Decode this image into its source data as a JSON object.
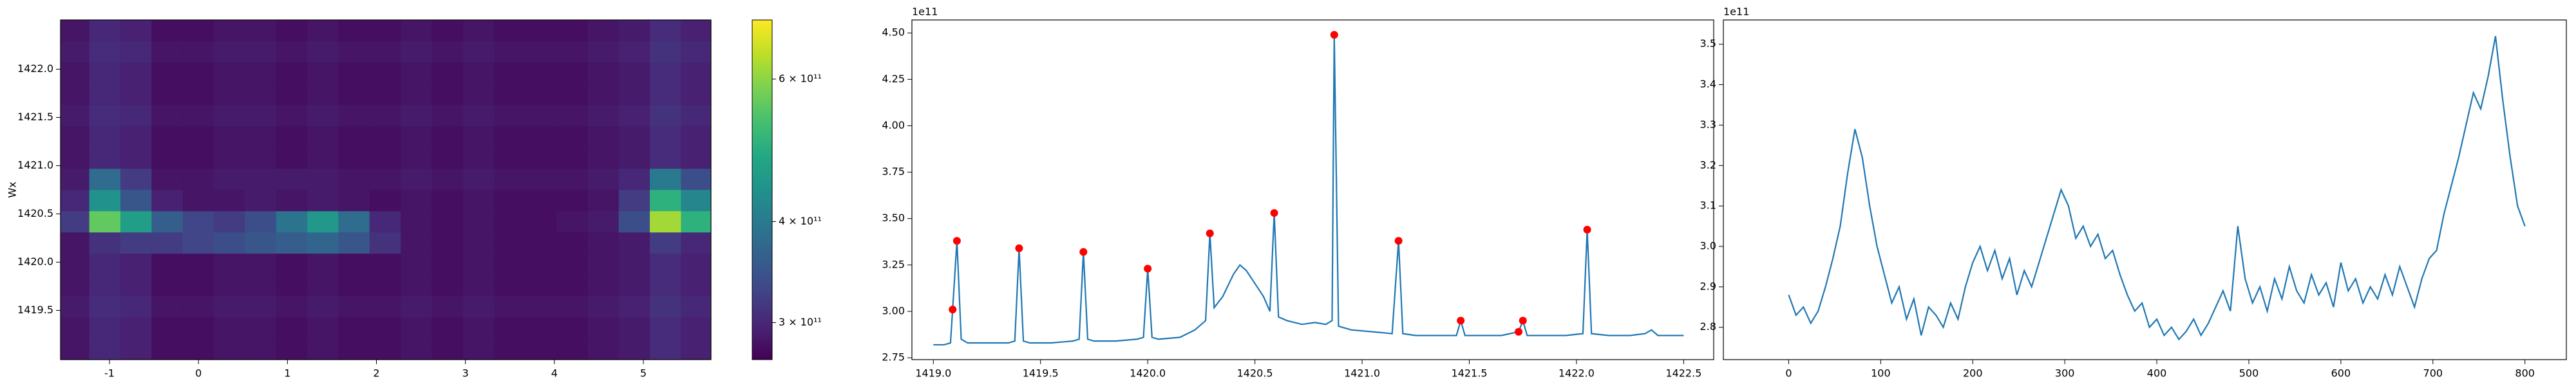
{
  "chart_data": [
    {
      "type": "heatmap",
      "ylabel": "Wx",
      "cmap": "viridis",
      "xlim": [
        -1.55,
        5.76
      ],
      "ylim": [
        1418.99,
        1422.51
      ],
      "xticks": [
        -1,
        0,
        1,
        2,
        3,
        4,
        5
      ],
      "yticks": [
        1419.5,
        {
          "value": 1420,
          "label": "1420.0"
        },
        1420.5,
        {
          "value": 1421,
          "label": "1421.0"
        },
        1421.5,
        {
          "value": 1422,
          "label": "1422.0"
        }
      ],
      "x": [
        -1.4,
        -1.05,
        -0.7,
        -0.35,
        0,
        0.35,
        0.7,
        1.05,
        1.4,
        1.75,
        2.1,
        2.45,
        2.8,
        3.15,
        3.5,
        3.85,
        4.2,
        4.55,
        4.9,
        5.25,
        5.6
      ],
      "y": [
        1419.1,
        1419.32,
        1419.54,
        1419.76,
        1419.98,
        1420.2,
        1420.42,
        1420.64,
        1420.86,
        1421.08,
        1421.3,
        1421.52,
        1421.74,
        1421.96,
        1422.18,
        1422.4
      ],
      "z": [
        [
          285000000000.0,
          300000000000.0,
          295000000000.0,
          280000000000.0,
          280000000000.0,
          285000000000.0,
          285000000000.0,
          280000000000.0,
          285000000000.0,
          280000000000.0,
          280000000000.0,
          285000000000.0,
          280000000000.0,
          285000000000.0,
          280000000000.0,
          280000000000.0,
          280000000000.0,
          285000000000.0,
          290000000000.0,
          305000000000.0,
          295000000000.0
        ],
        [
          285000000000.0,
          300000000000.0,
          295000000000.0,
          280000000000.0,
          280000000000.0,
          285000000000.0,
          285000000000.0,
          280000000000.0,
          285000000000.0,
          280000000000.0,
          280000000000.0,
          285000000000.0,
          280000000000.0,
          285000000000.0,
          280000000000.0,
          280000000000.0,
          280000000000.0,
          285000000000.0,
          290000000000.0,
          305000000000.0,
          295000000000.0
        ],
        [
          290000000000.0,
          305000000000.0,
          300000000000.0,
          285000000000.0,
          285000000000.0,
          290000000000.0,
          290000000000.0,
          285000000000.0,
          290000000000.0,
          285000000000.0,
          285000000000.0,
          290000000000.0,
          285000000000.0,
          290000000000.0,
          285000000000.0,
          285000000000.0,
          285000000000.0,
          290000000000.0,
          295000000000.0,
          310000000000.0,
          300000000000.0
        ],
        [
          285000000000.0,
          300000000000.0,
          295000000000.0,
          280000000000.0,
          280000000000.0,
          285000000000.0,
          285000000000.0,
          280000000000.0,
          285000000000.0,
          280000000000.0,
          280000000000.0,
          285000000000.0,
          280000000000.0,
          285000000000.0,
          280000000000.0,
          280000000000.0,
          280000000000.0,
          285000000000.0,
          290000000000.0,
          305000000000.0,
          295000000000.0
        ],
        [
          285000000000.0,
          300000000000.0,
          295000000000.0,
          280000000000.0,
          280000000000.0,
          285000000000.0,
          285000000000.0,
          280000000000.0,
          285000000000.0,
          280000000000.0,
          280000000000.0,
          285000000000.0,
          280000000000.0,
          285000000000.0,
          280000000000.0,
          280000000000.0,
          280000000000.0,
          285000000000.0,
          290000000000.0,
          305000000000.0,
          295000000000.0
        ],
        [
          285000000000.0,
          310000000000.0,
          320000000000.0,
          320000000000.0,
          330000000000.0,
          340000000000.0,
          350000000000.0,
          360000000000.0,
          370000000000.0,
          350000000000.0,
          310000000000.0,
          285000000000.0,
          280000000000.0,
          285000000000.0,
          280000000000.0,
          280000000000.0,
          280000000000.0,
          285000000000.0,
          290000000000.0,
          320000000000.0,
          300000000000.0
        ],
        [
          320000000000.0,
          560000000000.0,
          460000000000.0,
          360000000000.0,
          330000000000.0,
          320000000000.0,
          340000000000.0,
          390000000000.0,
          450000000000.0,
          380000000000.0,
          300000000000.0,
          285000000000.0,
          280000000000.0,
          285000000000.0,
          280000000000.0,
          280000000000.0,
          285000000000.0,
          290000000000.0,
          340000000000.0,
          620000000000.0,
          500000000000.0
        ],
        [
          300000000000.0,
          440000000000.0,
          350000000000.0,
          295000000000.0,
          285000000000.0,
          285000000000.0,
          290000000000.0,
          285000000000.0,
          290000000000.0,
          285000000000.0,
          280000000000.0,
          285000000000.0,
          280000000000.0,
          285000000000.0,
          280000000000.0,
          280000000000.0,
          280000000000.0,
          285000000000.0,
          320000000000.0,
          500000000000.0,
          420000000000.0
        ],
        [
          290000000000.0,
          380000000000.0,
          320000000000.0,
          285000000000.0,
          285000000000.0,
          290000000000.0,
          290000000000.0,
          290000000000.0,
          290000000000.0,
          285000000000.0,
          285000000000.0,
          290000000000.0,
          285000000000.0,
          290000000000.0,
          285000000000.0,
          285000000000.0,
          285000000000.0,
          290000000000.0,
          300000000000.0,
          400000000000.0,
          340000000000.0
        ],
        [
          285000000000.0,
          300000000000.0,
          295000000000.0,
          280000000000.0,
          280000000000.0,
          285000000000.0,
          285000000000.0,
          280000000000.0,
          285000000000.0,
          280000000000.0,
          280000000000.0,
          285000000000.0,
          280000000000.0,
          285000000000.0,
          280000000000.0,
          280000000000.0,
          280000000000.0,
          285000000000.0,
          290000000000.0,
          305000000000.0,
          295000000000.0
        ],
        [
          285000000000.0,
          300000000000.0,
          295000000000.0,
          280000000000.0,
          280000000000.0,
          285000000000.0,
          285000000000.0,
          280000000000.0,
          285000000000.0,
          280000000000.0,
          280000000000.0,
          285000000000.0,
          280000000000.0,
          285000000000.0,
          280000000000.0,
          280000000000.0,
          280000000000.0,
          285000000000.0,
          290000000000.0,
          305000000000.0,
          295000000000.0
        ],
        [
          290000000000.0,
          305000000000.0,
          300000000000.0,
          285000000000.0,
          285000000000.0,
          290000000000.0,
          290000000000.0,
          285000000000.0,
          290000000000.0,
          285000000000.0,
          285000000000.0,
          290000000000.0,
          285000000000.0,
          290000000000.0,
          285000000000.0,
          285000000000.0,
          285000000000.0,
          290000000000.0,
          295000000000.0,
          310000000000.0,
          300000000000.0
        ],
        [
          285000000000.0,
          300000000000.0,
          295000000000.0,
          280000000000.0,
          280000000000.0,
          285000000000.0,
          285000000000.0,
          280000000000.0,
          285000000000.0,
          280000000000.0,
          280000000000.0,
          285000000000.0,
          280000000000.0,
          285000000000.0,
          280000000000.0,
          280000000000.0,
          280000000000.0,
          285000000000.0,
          290000000000.0,
          305000000000.0,
          295000000000.0
        ],
        [
          285000000000.0,
          300000000000.0,
          295000000000.0,
          280000000000.0,
          280000000000.0,
          285000000000.0,
          285000000000.0,
          280000000000.0,
          285000000000.0,
          280000000000.0,
          280000000000.0,
          285000000000.0,
          280000000000.0,
          285000000000.0,
          280000000000.0,
          280000000000.0,
          280000000000.0,
          285000000000.0,
          290000000000.0,
          305000000000.0,
          295000000000.0
        ],
        [
          290000000000.0,
          305000000000.0,
          300000000000.0,
          285000000000.0,
          285000000000.0,
          290000000000.0,
          290000000000.0,
          285000000000.0,
          290000000000.0,
          285000000000.0,
          285000000000.0,
          290000000000.0,
          285000000000.0,
          290000000000.0,
          285000000000.0,
          285000000000.0,
          285000000000.0,
          290000000000.0,
          295000000000.0,
          310000000000.0,
          300000000000.0
        ],
        [
          285000000000.0,
          300000000000.0,
          295000000000.0,
          280000000000.0,
          280000000000.0,
          285000000000.0,
          285000000000.0,
          280000000000.0,
          285000000000.0,
          280000000000.0,
          280000000000.0,
          285000000000.0,
          280000000000.0,
          285000000000.0,
          280000000000.0,
          280000000000.0,
          280000000000.0,
          285000000000.0,
          290000000000.0,
          305000000000.0,
          295000000000.0
        ]
      ],
      "colorbar": {
        "log": true,
        "lim": [
          270000000000.0,
          710000000000.0
        ],
        "ticks": [
          {
            "value": 300000000000.0,
            "label": "3 × 10¹¹"
          },
          {
            "value": 400000000000.0,
            "label": "4 × 10¹¹"
          },
          {
            "value": 600000000000.0,
            "label": "6 × 10¹¹"
          }
        ]
      }
    },
    {
      "type": "line",
      "offset_text": "1e11",
      "xlim": [
        1418.9,
        1422.64
      ],
      "ylim": [
        2.74,
        4.57
      ],
      "xticks": [
        {
          "value": 1419,
          "label": "1419.0"
        },
        1419.5,
        {
          "value": 1420,
          "label": "1420.0"
        },
        1420.5,
        {
          "value": 1421,
          "label": "1421.0"
        },
        1421.5,
        {
          "value": 1422,
          "label": "1422.0"
        },
        1422.5
      ],
      "yticks": [
        2.75,
        {
          "value": 3,
          "label": "3.00"
        },
        3.25,
        {
          "value": 3.5,
          "label": "3.50"
        },
        3.75,
        {
          "value": 4,
          "label": "4.00"
        },
        4.25,
        {
          "value": 4.5,
          "label": "4.50"
        }
      ],
      "series": [
        {
          "color": "#1f77b4",
          "x": [
            1419.0,
            1419.05,
            1419.08,
            1419.09,
            1419.11,
            1419.13,
            1419.16,
            1419.25,
            1419.35,
            1419.38,
            1419.4,
            1419.42,
            1419.45,
            1419.55,
            1419.65,
            1419.68,
            1419.7,
            1419.72,
            1419.75,
            1419.85,
            1419.95,
            1419.98,
            1420.0,
            1420.02,
            1420.05,
            1420.15,
            1420.22,
            1420.27,
            1420.29,
            1420.31,
            1420.35,
            1420.4,
            1420.43,
            1420.46,
            1420.5,
            1420.54,
            1420.57,
            1420.59,
            1420.61,
            1420.65,
            1420.72,
            1420.78,
            1420.83,
            1420.86,
            1420.87,
            1420.89,
            1420.95,
            1421.05,
            1421.14,
            1421.17,
            1421.19,
            1421.25,
            1421.35,
            1421.44,
            1421.46,
            1421.48,
            1421.55,
            1421.65,
            1421.73,
            1421.75,
            1421.77,
            1421.85,
            1421.95,
            1422.03,
            1422.05,
            1422.07,
            1422.15,
            1422.25,
            1422.32,
            1422.35,
            1422.38,
            1422.45,
            1422.5
          ],
          "values": [
            2.82,
            2.82,
            2.83,
            3.01,
            3.38,
            2.85,
            2.83,
            2.83,
            2.83,
            2.84,
            3.34,
            2.84,
            2.83,
            2.83,
            2.84,
            2.85,
            3.32,
            2.85,
            2.84,
            2.84,
            2.85,
            2.86,
            3.23,
            2.86,
            2.85,
            2.86,
            2.9,
            2.95,
            3.42,
            3.02,
            3.08,
            3.2,
            3.25,
            3.22,
            3.15,
            3.08,
            3.0,
            3.53,
            2.97,
            2.95,
            2.93,
            2.94,
            2.93,
            2.95,
            4.49,
            2.92,
            2.9,
            2.89,
            2.88,
            3.38,
            2.88,
            2.87,
            2.87,
            2.87,
            2.95,
            2.87,
            2.87,
            2.87,
            2.89,
            2.95,
            2.87,
            2.87,
            2.87,
            2.88,
            3.44,
            2.88,
            2.87,
            2.87,
            2.88,
            2.9,
            2.87,
            2.87,
            2.87
          ]
        },
        {
          "color": "red",
          "marker": "o",
          "x": [
            1419.09,
            1419.11,
            1419.4,
            1419.7,
            1420.0,
            1420.29,
            1420.59,
            1420.87,
            1421.17,
            1421.46,
            1421.73,
            1421.75,
            1422.05
          ],
          "values": [
            3.01,
            3.38,
            3.34,
            3.32,
            3.23,
            3.42,
            3.53,
            4.49,
            3.38,
            2.95,
            2.89,
            2.95,
            3.44
          ]
        }
      ]
    },
    {
      "type": "line",
      "offset_text": "1e11",
      "xlim": [
        -71,
        845
      ],
      "ylim": [
        2.72,
        3.56
      ],
      "xticks": [
        0,
        100,
        200,
        300,
        400,
        500,
        600,
        700,
        800
      ],
      "yticks": [
        2.8,
        2.9,
        {
          "value": 3,
          "label": "3.0"
        },
        3.1,
        3.2,
        3.3,
        3.4,
        3.5
      ],
      "series": [
        {
          "color": "#1f77b4",
          "x": [
            0,
            8,
            16,
            24,
            32,
            40,
            48,
            56,
            64,
            72,
            80,
            88,
            96,
            104,
            112,
            120,
            128,
            136,
            144,
            152,
            160,
            168,
            176,
            184,
            192,
            200,
            208,
            216,
            224,
            232,
            240,
            248,
            256,
            264,
            272,
            280,
            288,
            296,
            304,
            312,
            320,
            328,
            336,
            344,
            352,
            360,
            368,
            376,
            384,
            392,
            400,
            408,
            416,
            424,
            432,
            440,
            448,
            456,
            464,
            472,
            480,
            488,
            496,
            504,
            512,
            520,
            528,
            536,
            544,
            552,
            560,
            568,
            576,
            584,
            592,
            600,
            608,
            616,
            624,
            632,
            640,
            648,
            656,
            664,
            672,
            680,
            688,
            696,
            704,
            712,
            720,
            728,
            736,
            744,
            752,
            760,
            768,
            776,
            784,
            792,
            800
          ],
          "values": [
            2.88,
            2.83,
            2.85,
            2.81,
            2.84,
            2.9,
            2.97,
            3.05,
            3.18,
            3.29,
            3.22,
            3.1,
            3.0,
            2.93,
            2.86,
            2.9,
            2.82,
            2.87,
            2.78,
            2.85,
            2.83,
            2.8,
            2.86,
            2.82,
            2.9,
            2.96,
            3.0,
            2.94,
            2.99,
            2.92,
            2.97,
            2.88,
            2.94,
            2.9,
            2.96,
            3.02,
            3.08,
            3.14,
            3.1,
            3.02,
            3.05,
            3.0,
            3.03,
            2.97,
            2.99,
            2.93,
            2.88,
            2.84,
            2.86,
            2.8,
            2.82,
            2.78,
            2.8,
            2.77,
            2.79,
            2.82,
            2.78,
            2.81,
            2.85,
            2.89,
            2.84,
            3.05,
            2.92,
            2.86,
            2.9,
            2.84,
            2.92,
            2.87,
            2.95,
            2.89,
            2.86,
            2.93,
            2.88,
            2.91,
            2.85,
            2.96,
            2.89,
            2.92,
            2.86,
            2.9,
            2.87,
            2.93,
            2.88,
            2.95,
            2.9,
            2.85,
            2.92,
            2.97,
            2.99,
            3.08,
            3.15,
            3.22,
            3.3,
            3.38,
            3.34,
            3.42,
            3.52,
            3.36,
            3.22,
            3.1,
            3.05
          ]
        }
      ]
    }
  ]
}
